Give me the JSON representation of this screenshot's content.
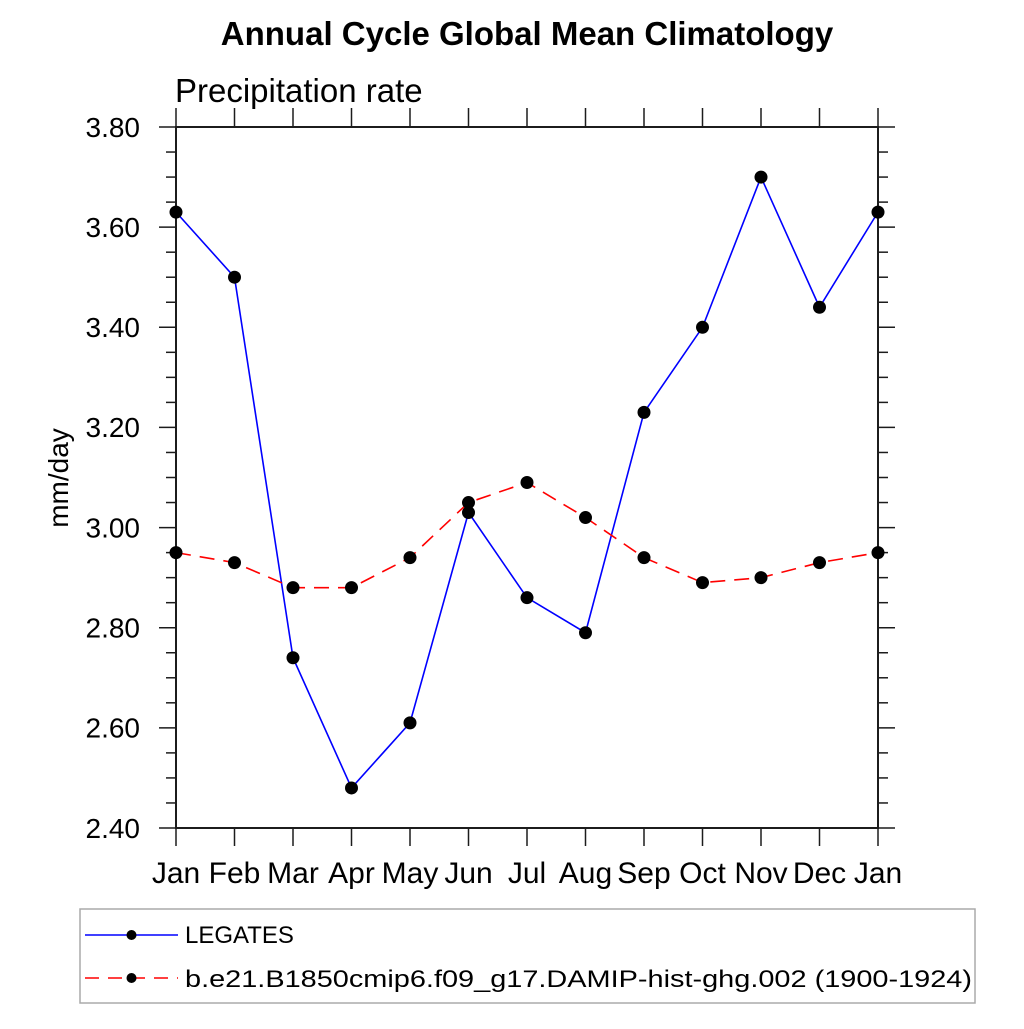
{
  "page": {
    "background": "#ffffff"
  },
  "chart_data": {
    "type": "line",
    "title": "Annual Cycle Global Mean Climatology",
    "subtitle": "Precipitation rate",
    "ylabel": "mm/day",
    "xlabel": "",
    "categories": [
      "Jan",
      "Feb",
      "Mar",
      "Apr",
      "May",
      "Jun",
      "Jul",
      "Aug",
      "Sep",
      "Oct",
      "Nov",
      "Dec",
      "Jan"
    ],
    "ylim": [
      2.4,
      3.8
    ],
    "ytick_step": 0.2,
    "yminor_step": 0.05,
    "ytick_labels": [
      "2.40",
      "2.60",
      "2.80",
      "3.00",
      "3.20",
      "3.40",
      "3.60",
      "3.80"
    ],
    "grid": false,
    "legend_position": "bottom-left",
    "frame_color": "#1c1c1c",
    "series": [
      {
        "name": "LEGATES",
        "color": "#0000ff",
        "line_style": "solid",
        "marker": "filled-circle",
        "marker_color": "#000000",
        "values": [
          3.63,
          3.5,
          2.74,
          2.48,
          2.61,
          3.03,
          2.86,
          2.79,
          3.23,
          3.4,
          3.7,
          3.44,
          3.63
        ]
      },
      {
        "name": "b.e21.B1850cmip6.f09_g17.DAMIP-hist-ghg.002 (1900-1924)",
        "color": "#ff0000",
        "line_style": "dashed",
        "marker": "filled-circle",
        "marker_color": "#000000",
        "values": [
          2.95,
          2.93,
          2.88,
          2.88,
          2.94,
          3.05,
          3.09,
          3.02,
          2.94,
          2.89,
          2.9,
          2.93,
          2.95
        ]
      }
    ]
  }
}
